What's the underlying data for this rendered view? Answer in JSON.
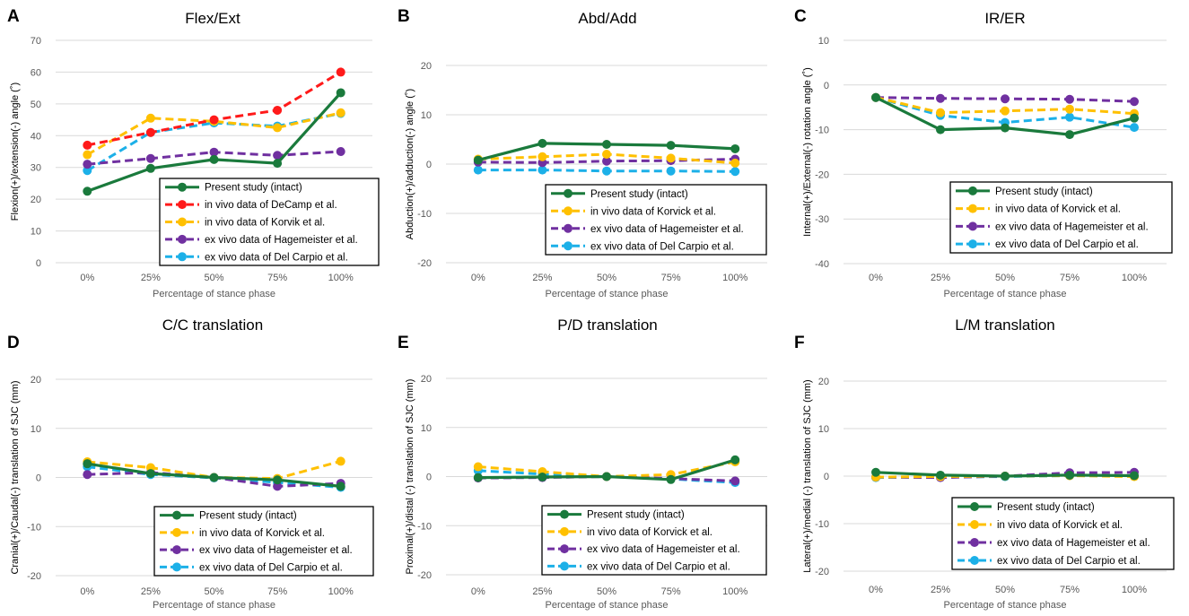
{
  "xaxis_label": "Percentage of stance phase",
  "colors": {
    "present": "#1a7a3c",
    "decamp": "#ff1a1a",
    "korvick": "#ffc000",
    "hagemeister": "#7030a0",
    "delcarpio": "#1cb0e8",
    "grid": "#d9d9d9",
    "text": "#595959"
  },
  "chart_data": [
    {
      "type": "line",
      "letter": "A",
      "title": "Flex/Ext",
      "xlabel": "Percentage of stance phase",
      "ylabel": "Flexion(+)/extension(-) angle (˚)",
      "categories": [
        "0%",
        "25%",
        "50%",
        "75%",
        "100%"
      ],
      "ylim": [
        0,
        70
      ],
      "yticks": [
        "0",
        "10",
        "20",
        "30",
        "40",
        "50",
        "60",
        "70"
      ],
      "legend_position": "bottom-right",
      "series": [
        {
          "name": "Present study (intact)",
          "key": "present",
          "dashed": false,
          "values": [
            22.5,
            29.7,
            32.5,
            31.3,
            53.5
          ]
        },
        {
          "name": "in vivo data of DeCamp et al.",
          "key": "decamp",
          "dashed": true,
          "values": [
            37,
            41,
            45,
            48,
            60
          ]
        },
        {
          "name": "in vivo data of Korvik et al.",
          "key": "korvick",
          "dashed": true,
          "values": [
            34,
            45.5,
            44.5,
            42.5,
            47.2
          ]
        },
        {
          "name": "ex vivo data of Hagemeister et al.",
          "key": "hagemeister",
          "dashed": true,
          "values": [
            31,
            32.8,
            34.8,
            33.8,
            35
          ]
        },
        {
          "name": "ex vivo data of Del Carpio et al.",
          "key": "delcarpio",
          "dashed": true,
          "values": [
            29,
            41,
            44,
            43,
            47
          ]
        }
      ]
    },
    {
      "type": "line",
      "letter": "B",
      "title": "Abd/Add",
      "xlabel": "Percentage of stance phase",
      "ylabel": "Abduction(+)/adduction(-) angle (˚)",
      "categories": [
        "0%",
        "25%",
        "50%",
        "75%",
        "100%"
      ],
      "ylim": [
        -20,
        20
      ],
      "yticks": [
        "-20",
        "-10",
        "0",
        "10",
        "20"
      ],
      "legend_position": "bottom-right",
      "series": [
        {
          "name": "Present study (intact)",
          "key": "present",
          "dashed": false,
          "values": [
            0.8,
            4.2,
            4.0,
            3.8,
            3.1
          ]
        },
        {
          "name": "in vivo data of Korvick et al.",
          "key": "korvick",
          "dashed": true,
          "values": [
            1.0,
            1.5,
            2.0,
            1.2,
            0.2
          ]
        },
        {
          "name": "ex vivo data of Hagemeister et al.",
          "key": "hagemeister",
          "dashed": true,
          "values": [
            0.4,
            0.3,
            0.6,
            0.7,
            1.0
          ]
        },
        {
          "name": "ex vivo data of Del Carpio et al.",
          "key": "delcarpio",
          "dashed": true,
          "values": [
            -1.2,
            -1.2,
            -1.4,
            -1.4,
            -1.5
          ]
        }
      ]
    },
    {
      "type": "line",
      "letter": "C",
      "title": "IR/ER",
      "xlabel": "Percentage of stance phase",
      "ylabel": "Internal(+)/External(-) rotation angle (˚)",
      "categories": [
        "0%",
        "25%",
        "50%",
        "75%",
        "100%"
      ],
      "ylim": [
        -40,
        10
      ],
      "yticks": [
        "-40",
        "-30",
        "-20",
        "-10",
        "0",
        "10"
      ],
      "legend_position": "bottom-right",
      "series": [
        {
          "name": "Present study (intact)",
          "key": "present",
          "dashed": false,
          "values": [
            -2.8,
            -10,
            -9.6,
            -11.1,
            -7.4
          ]
        },
        {
          "name": "in vivo data of Korvick et al.",
          "key": "korvick",
          "dashed": true,
          "values": [
            -2.8,
            -6.2,
            -5.8,
            -5.4,
            -6.4
          ]
        },
        {
          "name": "ex vivo data of Hagemeister et al.",
          "key": "hagemeister",
          "dashed": true,
          "values": [
            -2.8,
            -3.0,
            -3.1,
            -3.2,
            -3.7
          ]
        },
        {
          "name": "ex vivo data of Del Carpio et al.",
          "key": "delcarpio",
          "dashed": true,
          "values": [
            -2.8,
            -6.8,
            -8.4,
            -7.2,
            -9.5
          ]
        }
      ]
    },
    {
      "type": "line",
      "letter": "D",
      "title": "C/C translation",
      "xlabel": "Percentage of stance phase",
      "ylabel": "Cranial(+)/Caudal(-) translation of SJC (mm)",
      "categories": [
        "0%",
        "25%",
        "50%",
        "75%",
        "100%"
      ],
      "ylim": [
        -20,
        20
      ],
      "yticks": [
        "-20",
        "-10",
        "0",
        "10",
        "20"
      ],
      "legend_position": "bottom-right",
      "series": [
        {
          "name": "Present study (intact)",
          "key": "present",
          "dashed": false,
          "values": [
            2.8,
            0.8,
            0,
            -0.5,
            -1.8
          ]
        },
        {
          "name": "in vivo data of Korvick et al.",
          "key": "korvick",
          "dashed": true,
          "values": [
            3.2,
            2.0,
            0,
            -0.2,
            3.3
          ]
        },
        {
          "name": "ex vivo data of Hagemeister et al.",
          "key": "hagemeister",
          "dashed": true,
          "values": [
            0.6,
            1.0,
            0,
            -1.8,
            -1.2
          ]
        },
        {
          "name": "ex vivo data of Del Carpio et al.",
          "key": "delcarpio",
          "dashed": true,
          "values": [
            2.2,
            0.6,
            -0.1,
            -1.0,
            -2.0
          ]
        }
      ]
    },
    {
      "type": "line",
      "letter": "E",
      "title": "P/D translation",
      "xlabel": "Percentage of stance phase",
      "ylabel": "Proximal(+)/distal (-) translation of SJC (mm)",
      "categories": [
        "0%",
        "25%",
        "50%",
        "75%",
        "100%"
      ],
      "ylim": [
        -20,
        20
      ],
      "yticks": [
        "-20",
        "-10",
        "0",
        "10",
        "20"
      ],
      "legend_position": "bottom-right",
      "series": [
        {
          "name": "Present study (intact)",
          "key": "present",
          "dashed": false,
          "values": [
            -0.2,
            -0.1,
            0,
            -0.6,
            3.4
          ]
        },
        {
          "name": "in vivo data of Korvick et al.",
          "key": "korvick",
          "dashed": true,
          "values": [
            2.0,
            1.0,
            0,
            0.4,
            3.0
          ]
        },
        {
          "name": "ex vivo data of Hagemeister et al.",
          "key": "hagemeister",
          "dashed": true,
          "values": [
            -0.3,
            -0.2,
            0,
            -0.4,
            -0.9
          ]
        },
        {
          "name": "ex vivo data of Del Carpio et al.",
          "key": "delcarpio",
          "dashed": true,
          "values": [
            1.2,
            0.5,
            0,
            -0.5,
            -1.2
          ]
        }
      ]
    },
    {
      "type": "line",
      "letter": "F",
      "title": "L/M translation",
      "xlabel": "Percentage of stance phase",
      "ylabel": "Lateral(+)/medial (-) translation of SJC (mm)",
      "categories": [
        "0%",
        "25%",
        "50%",
        "75%",
        "100%"
      ],
      "ylim": [
        -20,
        20
      ],
      "yticks": [
        "-20",
        "-10",
        "0",
        "10",
        "20"
      ],
      "legend_position": "bottom-right",
      "series": [
        {
          "name": "Present study (intact)",
          "key": "present",
          "dashed": false,
          "values": [
            0.8,
            0.2,
            0,
            0.2,
            0.1
          ]
        },
        {
          "name": "in vivo data of Korvick et al.",
          "key": "korvick",
          "dashed": true,
          "values": [
            -0.2,
            -0.1,
            0,
            0.1,
            -0.1
          ]
        },
        {
          "name": "ex vivo data of Hagemeister et al.",
          "key": "hagemeister",
          "dashed": true,
          "values": [
            -0.2,
            -0.3,
            0,
            0.7,
            0.8
          ]
        },
        {
          "name": "ex vivo data of Del Carpio et al.",
          "key": "delcarpio",
          "dashed": true,
          "values": [
            -0.3,
            -0.2,
            -0.1,
            0.1,
            0.0
          ]
        }
      ]
    }
  ]
}
